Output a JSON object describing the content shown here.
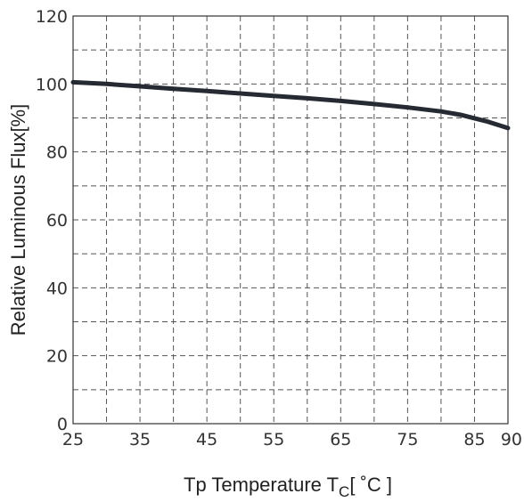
{
  "chart_data": {
    "type": "line",
    "title": "",
    "xlabel": "Tp Temperature T",
    "xlabel_subscript": "C",
    "xlabel_unit": "[ ˚C ]",
    "ylabel": "Relative Luminous Flux[%]",
    "xlim": [
      25,
      90
    ],
    "ylim": [
      0,
      120
    ],
    "xticks": [
      25,
      35,
      45,
      55,
      65,
      75,
      85,
      90
    ],
    "yticks": [
      0,
      20,
      40,
      60,
      80,
      100,
      120
    ],
    "grid": true,
    "grid_style": "dashed",
    "series": [
      {
        "color": "#262a33",
        "x": [
          25,
          30,
          35,
          40,
          45,
          50,
          55,
          60,
          65,
          70,
          75,
          80,
          83,
          85,
          87,
          90
        ],
        "y": [
          100.5,
          100.0,
          99.3,
          98.6,
          97.9,
          97.2,
          96.5,
          95.8,
          95.0,
          94.1,
          93.1,
          91.9,
          90.9,
          89.9,
          88.9,
          87.0
        ]
      }
    ]
  }
}
